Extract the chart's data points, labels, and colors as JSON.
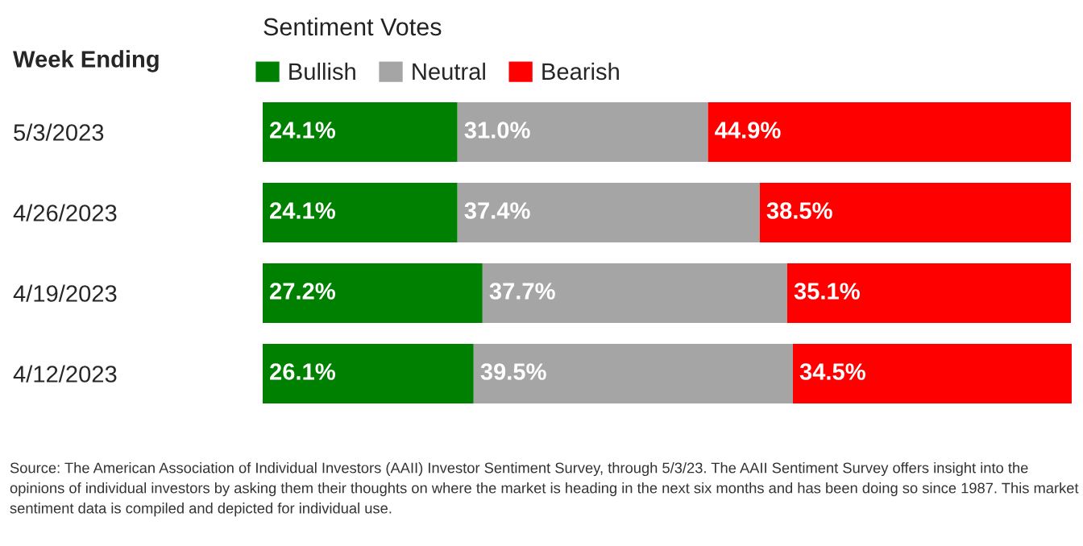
{
  "chart_data": {
    "type": "bar",
    "orientation": "horizontal",
    "stacked": true,
    "title": "Sentiment Votes",
    "ylabel": "Week Ending",
    "categories": [
      "5/3/2023",
      "4/26/2023",
      "4/19/2023",
      "4/12/2023"
    ],
    "series": [
      {
        "name": "Bullish",
        "color": "#008000",
        "values": [
          24.1,
          24.1,
          27.2,
          26.1
        ],
        "value_labels": [
          "24.1%",
          "24.1%",
          "27.2%",
          "26.1%"
        ]
      },
      {
        "name": "Neutral",
        "color": "#a5a5a5",
        "values": [
          31.0,
          37.4,
          37.7,
          39.5
        ],
        "value_labels": [
          "31.0%",
          "37.4%",
          "37.7%",
          "39.5%"
        ]
      },
      {
        "name": "Bearish",
        "color": "#ff0000",
        "values": [
          44.9,
          38.5,
          35.1,
          34.5
        ],
        "value_labels": [
          "44.9%",
          "38.5%",
          "35.1%",
          "34.5%"
        ]
      }
    ],
    "legend": "top",
    "grid": false,
    "tick_labels": "y",
    "annotations": [
      "Source: The American Association of Individual Investors (AAII) Investor Sentiment Survey, through 5/3/23. The AAII Sentiment Survey offers insight into the opinions of individual investors by asking them their thoughts on where the market is heading in the next six months and has been doing so since 1987. This market sentiment data is compiled and depicted for individual use."
    ]
  }
}
